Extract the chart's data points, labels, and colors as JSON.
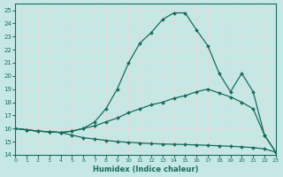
{
  "xlabel": "Humidex (Indice chaleur)",
  "xlim": [
    0,
    23
  ],
  "ylim": [
    14,
    25.5
  ],
  "yticks": [
    14,
    15,
    16,
    17,
    18,
    19,
    20,
    21,
    22,
    23,
    24,
    25
  ],
  "xticks": [
    0,
    1,
    2,
    3,
    4,
    5,
    6,
    7,
    8,
    9,
    10,
    11,
    12,
    13,
    14,
    15,
    16,
    17,
    18,
    19,
    20,
    21,
    22,
    23
  ],
  "bg_color": "#c5e8e5",
  "line_color": "#1a6b5a",
  "grid_color": "#ddf0ee",
  "line_max_x": [
    0,
    1,
    2,
    3,
    4,
    5,
    6,
    7,
    8,
    9,
    10,
    11,
    12,
    13,
    14,
    15,
    16,
    17,
    18,
    19,
    20,
    21,
    22,
    23
  ],
  "line_max_y": [
    16.0,
    15.9,
    15.8,
    15.75,
    15.7,
    15.8,
    16.0,
    16.5,
    17.5,
    19.0,
    21.0,
    22.5,
    23.3,
    24.3,
    24.8,
    24.8,
    23.5,
    22.3,
    20.2,
    18.8,
    20.2,
    18.8,
    15.5,
    14.2
  ],
  "line_mid_x": [
    0,
    1,
    2,
    3,
    4,
    5,
    6,
    7,
    8,
    9,
    10,
    11,
    12,
    13,
    14,
    15,
    16,
    17,
    18,
    19,
    20,
    21,
    22,
    23
  ],
  "line_mid_y": [
    16.0,
    15.9,
    15.8,
    15.75,
    15.7,
    15.8,
    16.0,
    16.2,
    16.5,
    16.8,
    17.2,
    17.5,
    17.8,
    18.0,
    18.3,
    18.5,
    18.8,
    19.0,
    18.7,
    18.4,
    18.0,
    17.5,
    15.5,
    14.2
  ],
  "line_min_x": [
    0,
    1,
    2,
    3,
    4,
    5,
    6,
    7,
    8,
    9,
    10,
    11,
    12,
    13,
    14,
    15,
    16,
    17,
    18,
    19,
    20,
    21,
    22,
    23
  ],
  "line_min_y": [
    16.0,
    15.9,
    15.8,
    15.75,
    15.7,
    15.5,
    15.3,
    15.2,
    15.1,
    15.0,
    14.95,
    14.9,
    14.85,
    14.82,
    14.8,
    14.78,
    14.75,
    14.72,
    14.68,
    14.65,
    14.6,
    14.55,
    14.45,
    14.2
  ],
  "marker": "D",
  "marker_size": 2.0,
  "linewidth": 0.9
}
